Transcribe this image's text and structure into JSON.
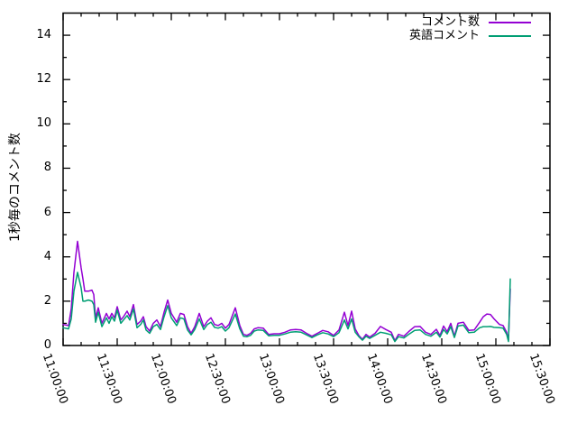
{
  "figure": {
    "background": "#ffffff",
    "axis_color": "#000000"
  },
  "chart_data": {
    "type": "line",
    "title": "",
    "xlabel": "",
    "ylabel": "1秒毎のコメント数",
    "x_units": "minutes after 11:00:00",
    "xlim": [
      0,
      270
    ],
    "ylim": [
      0,
      15
    ],
    "grid": false,
    "legend_position": "top-right-inside",
    "x_major_tick_step": 30,
    "x_minor_tick_step": 10,
    "y_major_tick_step": 2,
    "y_minor_tick_step": 1,
    "x_tick_labels": [
      "11:00:00",
      "11:30:00",
      "12:00:00",
      "12:30:00",
      "13:00:00",
      "13:30:00",
      "14:00:00",
      "14:30:00",
      "15:00:00",
      "15:30:00"
    ],
    "y_tick_labels": [
      "0",
      "2",
      "4",
      "6",
      "8",
      "10",
      "12",
      "14"
    ],
    "x": [
      0,
      3,
      4.5,
      6,
      8,
      10,
      11,
      12,
      14,
      16,
      17,
      18,
      19.5,
      21.5,
      24,
      25.5,
      27,
      28.5,
      30,
      32,
      33.5,
      35.5,
      37,
      39,
      41,
      43,
      44.5,
      46,
      48,
      50,
      52,
      54,
      56,
      58,
      60,
      63,
      65,
      67,
      69,
      71,
      73,
      75.5,
      78,
      80,
      82,
      84,
      86,
      88,
      90,
      92,
      95.5,
      98,
      100,
      102,
      104,
      106,
      108,
      111,
      114,
      117,
      120,
      123,
      126,
      129,
      132,
      135,
      138,
      141,
      144,
      147,
      150,
      153,
      156,
      158,
      160,
      162,
      164,
      166,
      168,
      170,
      173,
      176,
      179,
      182,
      184,
      186,
      189,
      192,
      195,
      198,
      201,
      204,
      207,
      209,
      211,
      213,
      215,
      217,
      219,
      222,
      225,
      228,
      231,
      233,
      235,
      237,
      239,
      242,
      244,
      246,
      247,
      248
    ],
    "series": [
      {
        "name": "コメント数",
        "color": "#9400d3",
        "values": [
          0.95,
          0.9,
          1.65,
          3.3,
          4.7,
          3.5,
          3.0,
          2.45,
          2.45,
          2.5,
          2.3,
          1.25,
          1.7,
          1.0,
          1.45,
          1.2,
          1.45,
          1.25,
          1.75,
          1.15,
          1.3,
          1.55,
          1.3,
          1.85,
          0.95,
          1.1,
          1.3,
          0.85,
          0.65,
          1.0,
          1.15,
          0.85,
          1.5,
          2.05,
          1.45,
          1.05,
          1.45,
          1.4,
          0.85,
          0.55,
          0.85,
          1.45,
          0.85,
          1.1,
          1.25,
          0.95,
          0.9,
          1.0,
          0.78,
          0.95,
          1.7,
          0.9,
          0.5,
          0.46,
          0.55,
          0.75,
          0.8,
          0.78,
          0.5,
          0.53,
          0.53,
          0.6,
          0.7,
          0.72,
          0.7,
          0.55,
          0.42,
          0.55,
          0.68,
          0.62,
          0.45,
          0.7,
          1.5,
          0.9,
          1.55,
          0.75,
          0.45,
          0.28,
          0.5,
          0.38,
          0.55,
          0.86,
          0.72,
          0.6,
          0.22,
          0.5,
          0.42,
          0.65,
          0.85,
          0.86,
          0.6,
          0.5,
          0.73,
          0.45,
          0.88,
          0.62,
          1.0,
          0.42,
          1.0,
          1.05,
          0.68,
          0.7,
          1.05,
          1.3,
          1.42,
          1.4,
          1.2,
          0.95,
          0.9,
          0.6,
          0.25,
          2.55
        ]
      },
      {
        "name": "英語コメント",
        "color": "#009e73",
        "values": [
          0.8,
          0.75,
          1.2,
          2.45,
          3.3,
          2.6,
          2.0,
          2.0,
          2.05,
          2.0,
          1.85,
          1.05,
          1.5,
          0.85,
          1.25,
          1.0,
          1.3,
          1.1,
          1.6,
          1.0,
          1.15,
          1.35,
          1.15,
          1.65,
          0.8,
          0.95,
          1.15,
          0.7,
          0.55,
          0.85,
          0.95,
          0.72,
          1.3,
          1.8,
          1.25,
          0.9,
          1.25,
          1.2,
          0.7,
          0.48,
          0.72,
          1.2,
          0.72,
          0.95,
          1.05,
          0.82,
          0.78,
          0.85,
          0.65,
          0.8,
          1.42,
          0.75,
          0.42,
          0.4,
          0.46,
          0.65,
          0.7,
          0.68,
          0.44,
          0.46,
          0.46,
          0.52,
          0.6,
          0.62,
          0.6,
          0.48,
          0.36,
          0.48,
          0.58,
          0.52,
          0.4,
          0.58,
          1.15,
          0.75,
          1.2,
          0.6,
          0.4,
          0.24,
          0.42,
          0.32,
          0.46,
          0.6,
          0.55,
          0.48,
          0.18,
          0.4,
          0.34,
          0.52,
          0.68,
          0.7,
          0.5,
          0.42,
          0.6,
          0.38,
          0.72,
          0.52,
          0.85,
          0.36,
          0.88,
          0.92,
          0.58,
          0.6,
          0.8,
          0.85,
          0.85,
          0.86,
          0.82,
          0.8,
          0.78,
          0.5,
          0.18,
          3.0
        ]
      }
    ]
  }
}
